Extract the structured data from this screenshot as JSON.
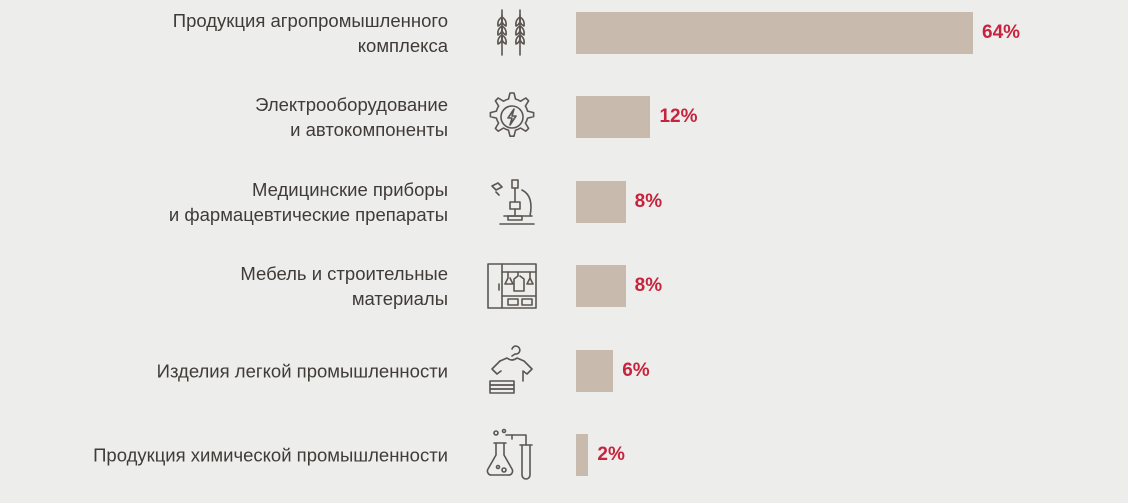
{
  "chart_data": {
    "type": "bar",
    "orientation": "horizontal",
    "unit": "%",
    "xlim": [
      0,
      64
    ],
    "categories": [
      [
        "Продукция агропромышленного",
        "комплекса"
      ],
      [
        "Электрооборудование",
        "и автокомпоненты"
      ],
      [
        "Медицинские приборы",
        "и фармацевтические препараты"
      ],
      [
        "Мебель и строительные",
        "материалы"
      ],
      [
        "Изделия легкой промышленности"
      ],
      [
        "Продукция химической промышленности"
      ]
    ],
    "values": [
      64,
      12,
      8,
      8,
      6,
      2
    ],
    "value_labels": [
      "64%",
      "12%",
      "8%",
      "8%",
      "6%",
      "2%"
    ],
    "icons": [
      "wheat-icon",
      "gear-bolt-icon",
      "microscope-icon",
      "wardrobe-icon",
      "tshirt-hanger-icon",
      "flask-icon"
    ],
    "colors": {
      "background": "#ededec",
      "bar": "#c8bbae",
      "value_text": "#c8233d",
      "label_text": "#3f3b37",
      "icon": "#5b5652"
    }
  }
}
